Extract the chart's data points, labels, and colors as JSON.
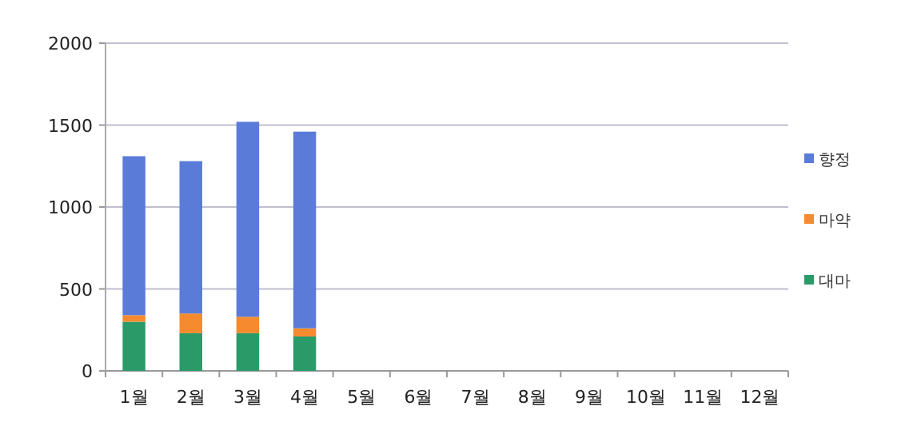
{
  "chart_data": {
    "type": "bar",
    "stacked": true,
    "categories": [
      "1월",
      "2월",
      "3월",
      "4월",
      "5월",
      "6월",
      "7월",
      "8월",
      "9월",
      "10월",
      "11월",
      "12월"
    ],
    "series": [
      {
        "name": "대마",
        "color": "#2a9a68",
        "values": [
          300,
          230,
          230,
          210,
          null,
          null,
          null,
          null,
          null,
          null,
          null,
          null
        ]
      },
      {
        "name": "마약",
        "color": "#f58a2e",
        "values": [
          40,
          120,
          100,
          50,
          null,
          null,
          null,
          null,
          null,
          null,
          null,
          null
        ]
      },
      {
        "name": "향정",
        "color": "#5b7bd8",
        "values": [
          970,
          930,
          1190,
          1200,
          null,
          null,
          null,
          null,
          null,
          null,
          null,
          null
        ]
      }
    ],
    "ylim": [
      0,
      2000
    ],
    "yticks": [
      0,
      500,
      1000,
      1500,
      2000
    ],
    "grid": "y",
    "legend": "right"
  }
}
